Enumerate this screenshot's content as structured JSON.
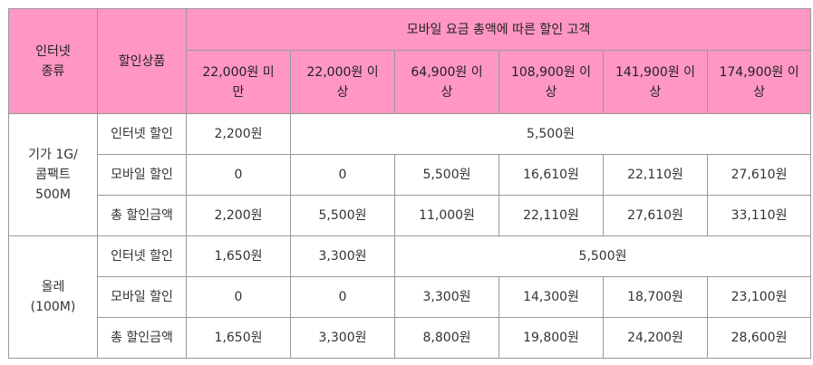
{
  "header": {
    "internet_type": [
      "인터넷",
      "종류"
    ],
    "discount_product": "할인상품",
    "group_title": "모바일 요금 총액에 따른 할인 고객",
    "tiers": [
      [
        "22,000원 미",
        "만"
      ],
      [
        "22,000원 이",
        "상"
      ],
      [
        "64,900원 이",
        "상"
      ],
      [
        "108,900원 이",
        "상"
      ],
      [
        "141,900원 이",
        "상"
      ],
      [
        "174,900원 이",
        "상"
      ]
    ]
  },
  "groups": [
    {
      "name": [
        "기가 1G/",
        "콤팩트",
        "500M"
      ],
      "rows": [
        {
          "label": "인터넷 할인",
          "first": "2,200원",
          "merged": "5,500원"
        },
        {
          "label": "모바일 할인",
          "values": [
            "0",
            "0",
            "5,500원",
            "16,610원",
            "22,110원",
            "27,610원"
          ]
        },
        {
          "label": "총 할인금액",
          "values": [
            "2,200원",
            "5,500원",
            "11,000원",
            "22,110원",
            "27,610원",
            "33,110원"
          ]
        }
      ]
    },
    {
      "name": [
        "올레",
        "(100M)"
      ],
      "rows": [
        {
          "label": "인터넷 할인",
          "first": "1,650원",
          "second": "3,300원",
          "merged": "5,500원"
        },
        {
          "label": "모바일 할인",
          "values": [
            "0",
            "0",
            "3,300원",
            "14,300원",
            "18,700원",
            "23,100원"
          ]
        },
        {
          "label": "총 할인금액",
          "values": [
            "1,650원",
            "3,300원",
            "8,800원",
            "19,800원",
            "24,200원",
            "28,600원"
          ]
        }
      ]
    }
  ],
  "colors": {
    "header_bg": "#ff96c3",
    "border": "#999999",
    "text": "#333333"
  }
}
